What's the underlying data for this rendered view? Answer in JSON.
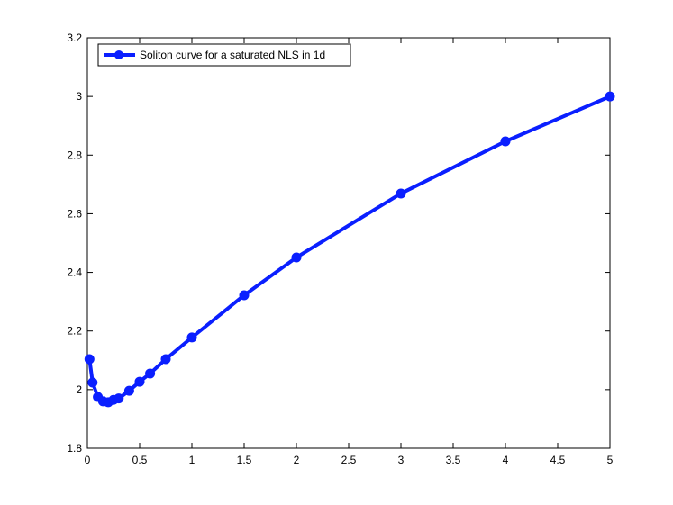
{
  "chart_data": {
    "type": "line",
    "x": [
      0.02,
      0.05,
      0.1,
      0.15,
      0.2,
      0.25,
      0.3,
      0.4,
      0.5,
      0.6,
      0.75,
      1,
      1.5,
      2,
      3,
      4,
      5
    ],
    "series": [
      {
        "name": "Soliton curve for a saturated NLS in 1d",
        "color": "#0a1fff",
        "values": [
          2.104,
          2.024,
          1.975,
          1.96,
          1.957,
          1.965,
          1.97,
          1.996,
          2.027,
          2.055,
          2.104,
          2.178,
          2.322,
          2.451,
          2.669,
          2.847,
          3.0
        ]
      }
    ],
    "xlim": [
      0,
      5
    ],
    "xticks": [
      0,
      0.5,
      1,
      1.5,
      2,
      2.5,
      3,
      3.5,
      4,
      4.5,
      5
    ],
    "ylim": [
      1.8,
      3.2
    ],
    "yticks": [
      1.8,
      2,
      2.2,
      2.4,
      2.6,
      2.8,
      3,
      3.2
    ],
    "grid": false,
    "legend": "upper-left"
  }
}
